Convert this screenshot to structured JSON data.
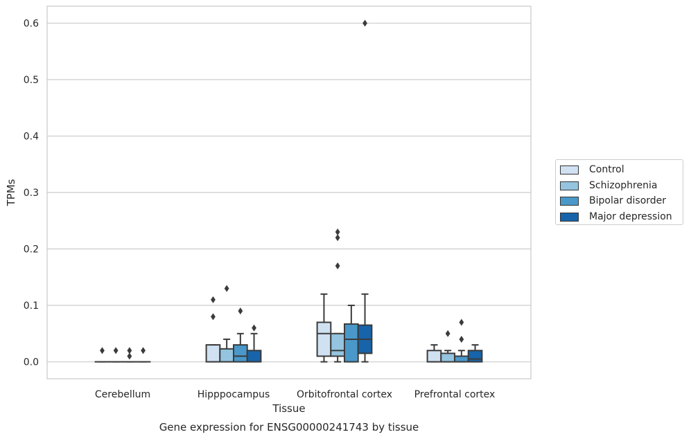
{
  "chart_data": {
    "type": "box",
    "title": "",
    "caption": "Gene expression for ENSG00000241743 by tissue",
    "xlabel": "Tissue",
    "ylabel": "TPMs",
    "ylim": [
      -0.03,
      0.63
    ],
    "yticks": [
      0.0,
      0.1,
      0.2,
      0.3,
      0.4,
      0.5,
      0.6
    ],
    "ytick_labels": [
      "0.0",
      "0.1",
      "0.2",
      "0.3",
      "0.4",
      "0.5",
      "0.6"
    ],
    "grid": "horizontal",
    "legend_placement": "center-right, outside plot",
    "categories": [
      "Cerebellum",
      "Hipppocampus",
      "Orbitofrontal cortex",
      "Prefrontal cortex"
    ],
    "series": [
      {
        "name": "Control",
        "color": "#d0e1f2",
        "boxes": [
          {
            "q1": 0,
            "median": 0,
            "q3": 0,
            "whisker_low": 0,
            "whisker_high": 0,
            "outliers": [
              0.02
            ]
          },
          {
            "q1": 0,
            "median": 0,
            "q3": 0.03,
            "whisker_low": 0,
            "whisker_high": 0.03,
            "outliers": [
              0.08,
              0.11
            ]
          },
          {
            "q1": 0.01,
            "median": 0.05,
            "q3": 0.07,
            "whisker_low": 0,
            "whisker_high": 0.12,
            "outliers": []
          },
          {
            "q1": 0,
            "median": 0,
            "q3": 0.02,
            "whisker_low": 0,
            "whisker_high": 0.03,
            "outliers": []
          }
        ]
      },
      {
        "name": "Schizophrenia",
        "color": "#94c4df",
        "boxes": [
          {
            "q1": 0,
            "median": 0,
            "q3": 0,
            "whisker_low": 0,
            "whisker_high": 0,
            "outliers": [
              0.02
            ]
          },
          {
            "q1": 0,
            "median": 0,
            "q3": 0.023,
            "whisker_low": 0,
            "whisker_high": 0.04,
            "outliers": [
              0.13
            ]
          },
          {
            "q1": 0.01,
            "median": 0.02,
            "q3": 0.05,
            "whisker_low": 0,
            "whisker_high": 0.05,
            "outliers": [
              0.17,
              0.22,
              0.23
            ]
          },
          {
            "q1": 0,
            "median": 0,
            "q3": 0.015,
            "whisker_low": 0,
            "whisker_high": 0.02,
            "outliers": [
              0.05
            ]
          }
        ]
      },
      {
        "name": "Bipolar disorder",
        "color": "#4a98c9",
        "boxes": [
          {
            "q1": 0,
            "median": 0,
            "q3": 0,
            "whisker_low": 0,
            "whisker_high": 0,
            "outliers": [
              0.01,
              0.02
            ]
          },
          {
            "q1": 0,
            "median": 0.01,
            "q3": 0.03,
            "whisker_low": 0,
            "whisker_high": 0.05,
            "outliers": [
              0.09
            ]
          },
          {
            "q1": 0,
            "median": 0.04,
            "q3": 0.067,
            "whisker_low": 0,
            "whisker_high": 0.1,
            "outliers": []
          },
          {
            "q1": 0,
            "median": 0,
            "q3": 0.01,
            "whisker_low": 0,
            "whisker_high": 0.02,
            "outliers": [
              0.04,
              0.07
            ]
          }
        ]
      },
      {
        "name": "Major depression",
        "color": "#1764ab",
        "boxes": [
          {
            "q1": 0,
            "median": 0,
            "q3": 0,
            "whisker_low": 0,
            "whisker_high": 0,
            "outliers": [
              0.02
            ]
          },
          {
            "q1": 0,
            "median": 0,
            "q3": 0.02,
            "whisker_low": 0,
            "whisker_high": 0.05,
            "outliers": [
              0.06
            ]
          },
          {
            "q1": 0.015,
            "median": 0.04,
            "q3": 0.065,
            "whisker_low": 0,
            "whisker_high": 0.12,
            "outliers": [
              0.6
            ]
          },
          {
            "q1": 0,
            "median": 0.005,
            "q3": 0.02,
            "whisker_low": 0,
            "whisker_high": 0.03,
            "outliers": []
          }
        ]
      }
    ]
  }
}
